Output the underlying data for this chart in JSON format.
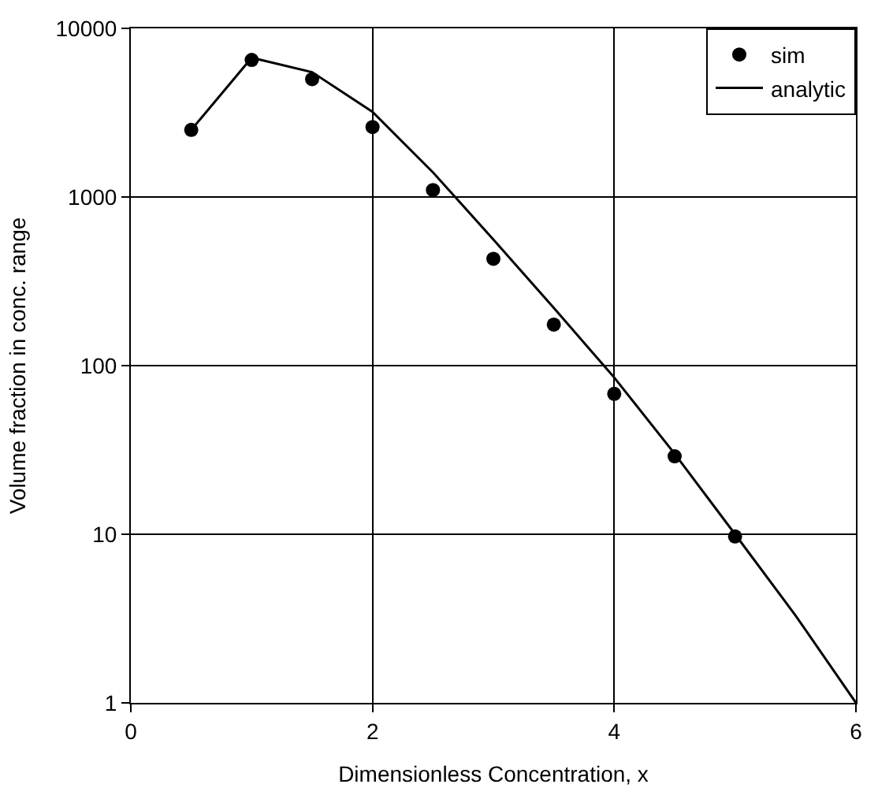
{
  "chart_data": {
    "type": "scatter",
    "xlabel": "Dimensionless Concentration, x",
    "ylabel": "Volume fraction in conc. range",
    "log": "y",
    "grid": true,
    "legend": "top right",
    "xlim": [
      0,
      6
    ],
    "xticks": [
      0,
      2,
      4,
      6
    ],
    "ylim": [
      1,
      10000
    ],
    "yticks": [
      1,
      10,
      100,
      1000,
      10000
    ],
    "series": [
      {
        "name": "sim",
        "marker": "circle",
        "color": "#000000",
        "x": [
          0.5,
          1,
          1.5,
          2,
          2.5,
          3,
          3.5,
          4,
          4.5,
          5
        ],
        "values": [
          2500,
          6500,
          5000,
          2600,
          1100,
          430,
          175,
          68,
          29,
          9.7
        ]
      },
      {
        "name": "analytic",
        "type": "line",
        "marker": "none",
        "line_style": "solid",
        "color": "#000000",
        "x": [
          0.5,
          1,
          1.5,
          2,
          2.5,
          3,
          3.5,
          4,
          4.5,
          5,
          5.5,
          6
        ],
        "values": [
          2500,
          6700,
          5500,
          3200,
          1400,
          560,
          220,
          85,
          30,
          10,
          3.3,
          1
        ]
      }
    ]
  }
}
